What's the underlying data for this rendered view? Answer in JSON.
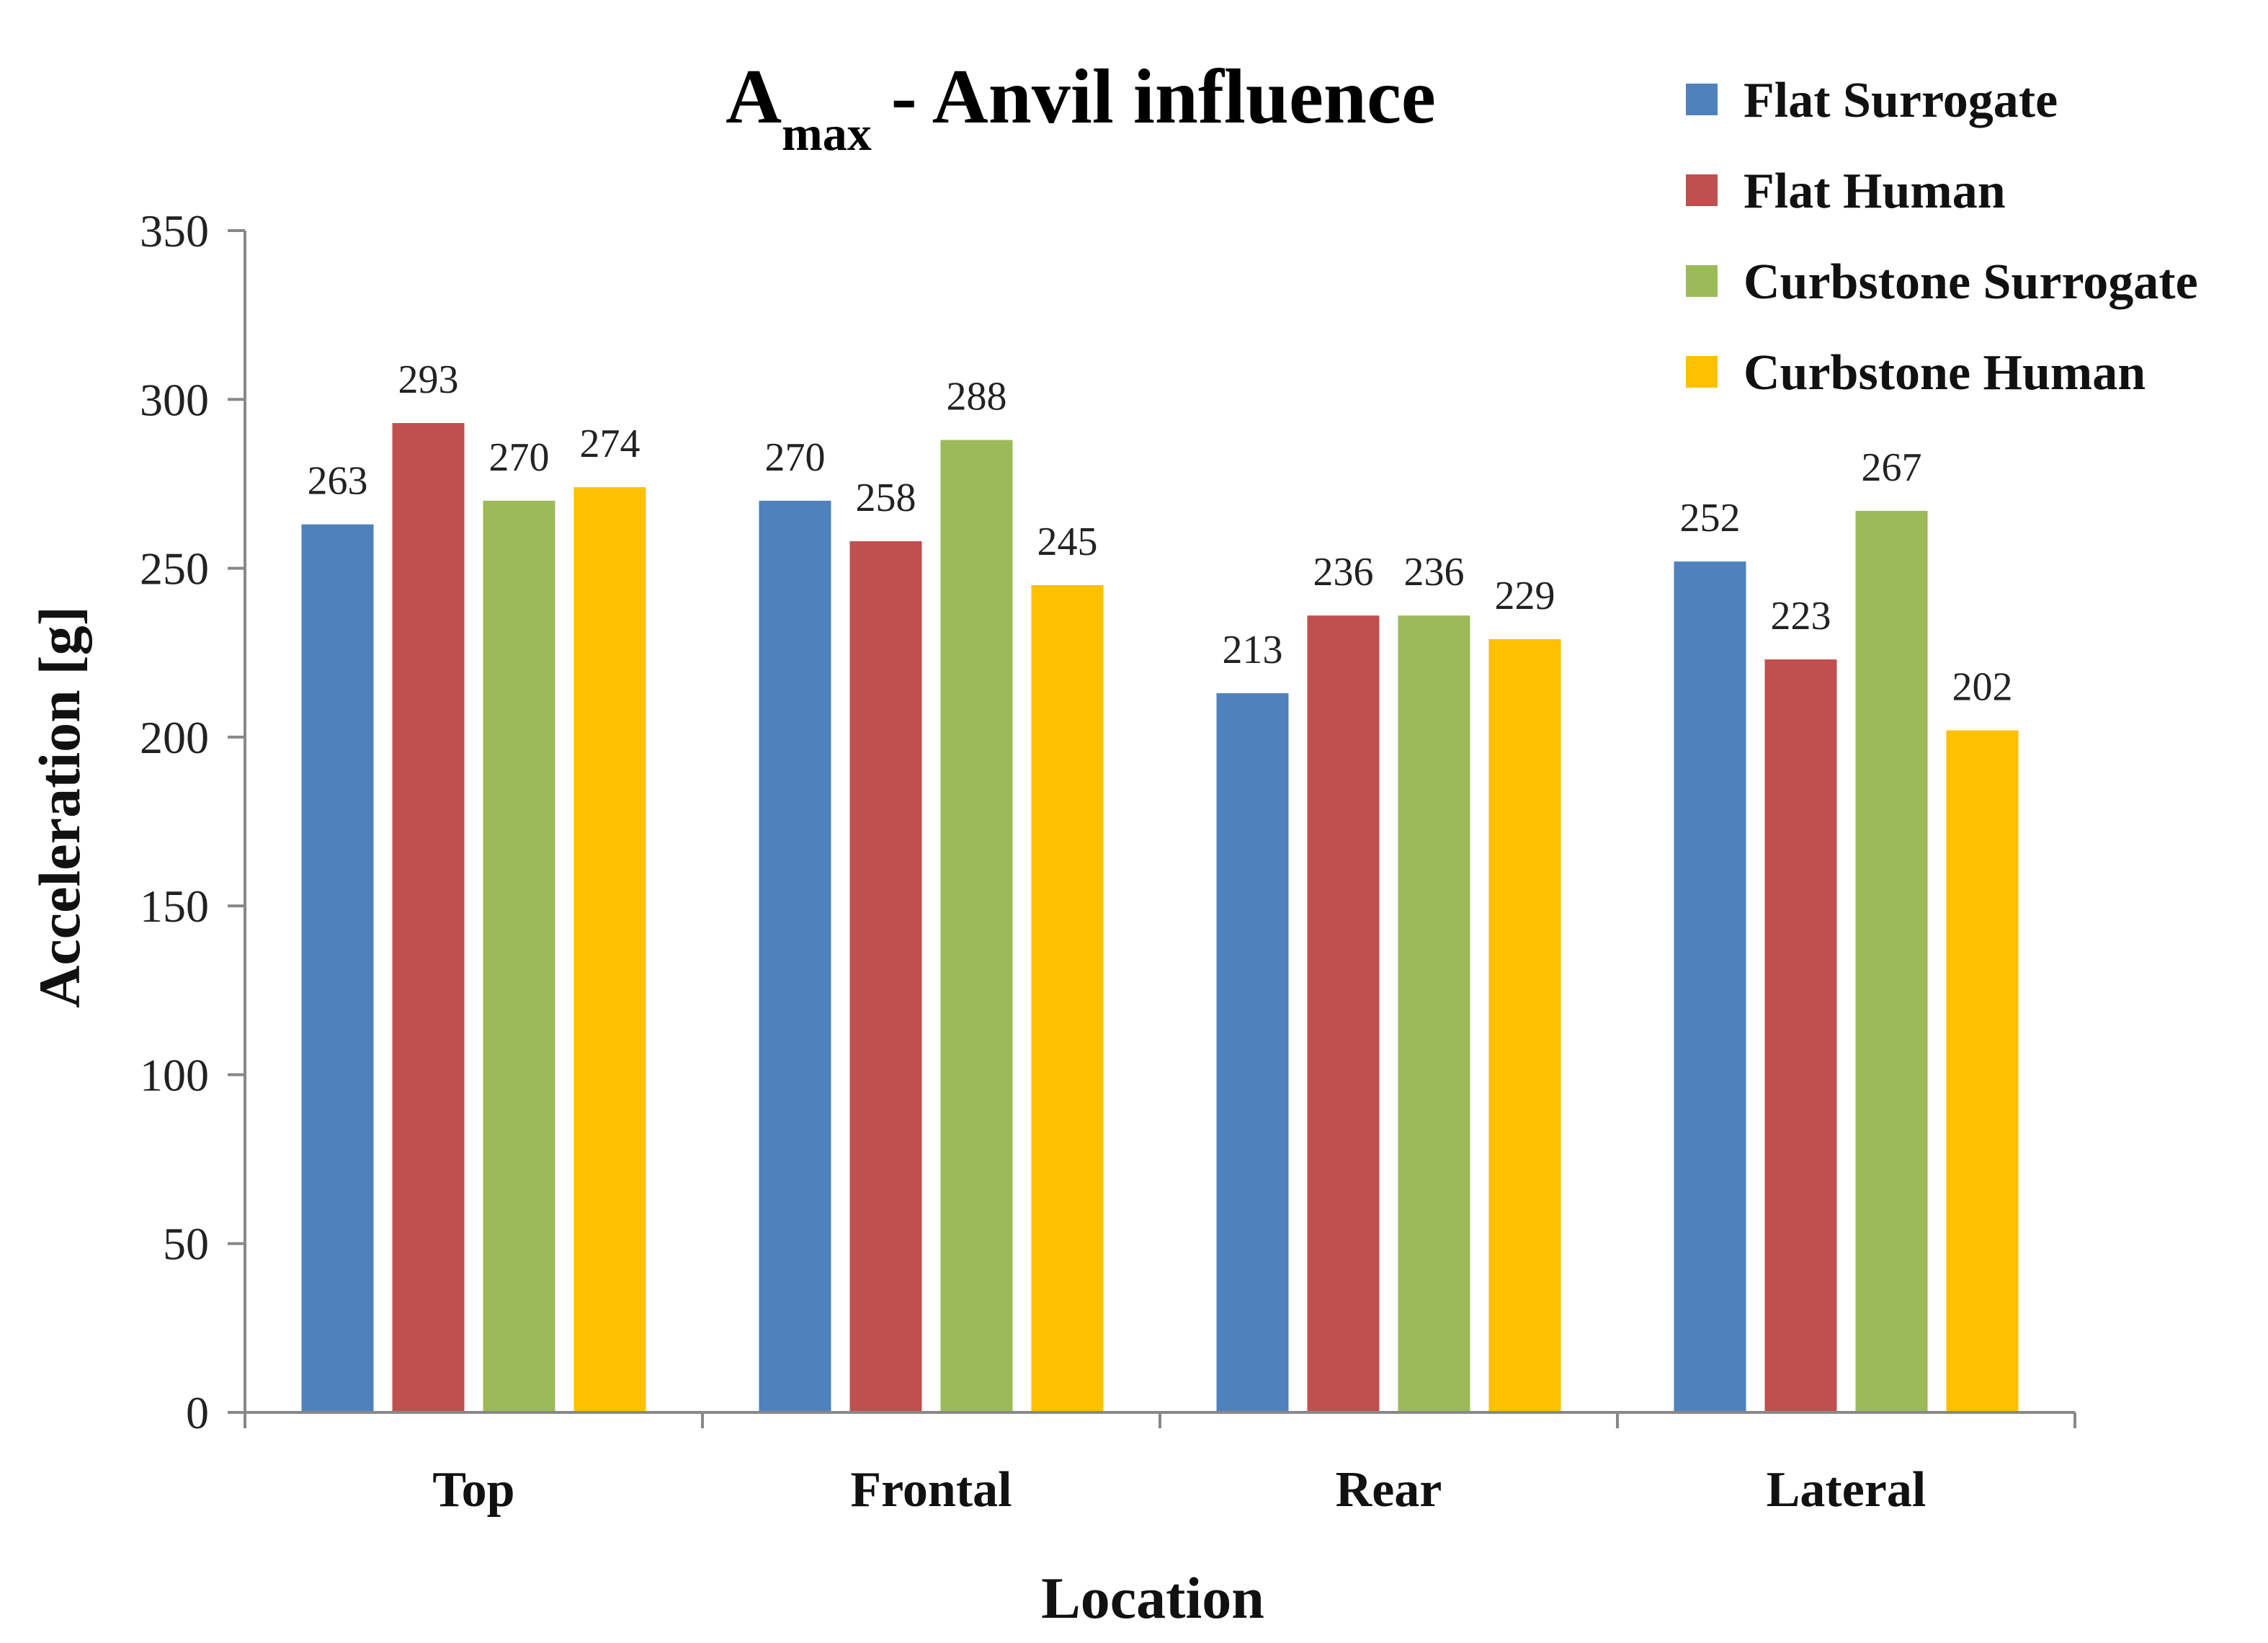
{
  "chart_data": {
    "type": "bar",
    "title": "A",
    "title_subscript": "max",
    "title_suffix": " - Anvil influence",
    "xlabel": "Location",
    "ylabel": "Acceleration [g]",
    "ylim": [
      0,
      350
    ],
    "yticks": [
      0,
      50,
      100,
      150,
      200,
      250,
      300,
      350
    ],
    "grid": false,
    "legend_position": "top-right",
    "categories": [
      "Top",
      "Frontal",
      "Rear",
      "Lateral"
    ],
    "series": [
      {
        "name": "Flat Surrogate",
        "color": "#4F81BD",
        "values": [
          263,
          270,
          213,
          252
        ]
      },
      {
        "name": "Flat Human",
        "color": "#C0504D",
        "values": [
          293,
          258,
          236,
          223
        ]
      },
      {
        "name": "Curbstone Surrogate",
        "color": "#9BBB59",
        "values": [
          270,
          288,
          236,
          267
        ]
      },
      {
        "name": "Curbstone Human",
        "color": "#FFC000",
        "values": [
          274,
          245,
          229,
          202
        ]
      }
    ]
  }
}
